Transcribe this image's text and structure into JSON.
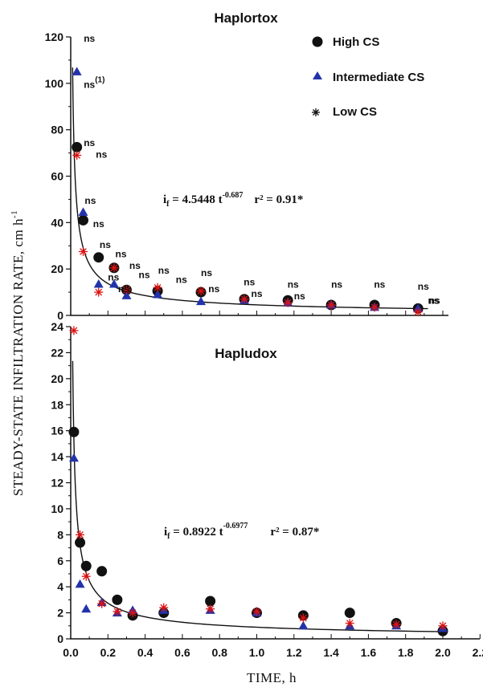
{
  "colors": {
    "high": "#111111",
    "intermediate": "#2233aa",
    "low": "#dd1111",
    "fit": "#111111"
  },
  "figure": {
    "ylabel": "STEADY-STATE INFILTRATION RATE, cm h",
    "ylabel_sup": "-1",
    "xlabel": "TIME, h"
  },
  "legend": {
    "high": "High CS",
    "intermediate": "Intermediate CS",
    "low": "Low CS"
  },
  "chart_data": [
    {
      "type": "scatter",
      "title": "Haplortox",
      "xlim": [
        0,
        2.2
      ],
      "ylim": [
        0,
        120
      ],
      "y_ticks": [
        0,
        20,
        40,
        60,
        80,
        100,
        120
      ],
      "x_tick_labels_shown": false,
      "equation": {
        "lhs": "i",
        "sub": "f",
        "coef": " = 4.5448 t",
        "exp": "-0.687",
        "r2": "r² = 0.91*"
      },
      "fit": {
        "a": 4.5448,
        "b": -0.687
      },
      "series": [
        {
          "name": "High CS",
          "marker": "circle",
          "x": [
            0.033,
            0.067,
            0.15,
            0.233,
            0.3,
            0.467,
            0.7,
            0.933,
            1.167,
            1.4,
            1.633,
            1.867
          ],
          "y": [
            72.5,
            41,
            25,
            20.5,
            11,
            10.5,
            10,
            7,
            6.5,
            4.5,
            4.5,
            3
          ]
        },
        {
          "name": "Intermediate CS",
          "marker": "triangle",
          "x": [
            0.033,
            0.067,
            0.15,
            0.233,
            0.3,
            0.467,
            0.7,
            0.933,
            1.167,
            1.4,
            1.633,
            1.867
          ],
          "y": [
            105,
            44.5,
            13.5,
            13.5,
            8.5,
            9,
            6,
            6.5,
            5.5,
            4.5,
            3.5,
            3
          ]
        },
        {
          "name": "Low CS",
          "marker": "star",
          "x": [
            0.033,
            0.067,
            0.15,
            0.233,
            0.3,
            0.467,
            0.7,
            0.933,
            1.167,
            1.4,
            1.633,
            1.867
          ],
          "y": [
            69,
            27.5,
            10,
            20.5,
            11,
            12,
            10.5,
            7,
            5.5,
            4.5,
            3.5,
            1.5
          ]
        }
      ],
      "annotations": [
        {
          "text": "ns",
          "x": 0.07,
          "y": 118
        },
        {
          "text": "ns",
          "sup": "(1)",
          "x": 0.07,
          "y": 98
        },
        {
          "text": "ns",
          "x": 0.07,
          "y": 73
        },
        {
          "text": "ns",
          "x": 0.135,
          "y": 68
        },
        {
          "text": "ns",
          "x": 0.075,
          "y": 48
        },
        {
          "text": "ns",
          "x": 0.12,
          "y": 38
        },
        {
          "text": "ns",
          "x": 0.155,
          "y": 29
        },
        {
          "text": "ns",
          "x": 0.24,
          "y": 25
        },
        {
          "text": "ns",
          "x": 0.2,
          "y": 15
        },
        {
          "text": "ns",
          "x": 0.315,
          "y": 20
        },
        {
          "text": "ns",
          "x": 0.255,
          "y": 10
        },
        {
          "text": "ns",
          "x": 0.365,
          "y": 16
        },
        {
          "text": "ns",
          "x": 0.47,
          "y": 18
        },
        {
          "text": "ns",
          "x": 0.565,
          "y": 14
        },
        {
          "text": "ns",
          "x": 0.7,
          "y": 17
        },
        {
          "text": "ns",
          "x": 0.74,
          "y": 10
        },
        {
          "text": "ns",
          "x": 0.93,
          "y": 13
        },
        {
          "text": "ns",
          "x": 0.97,
          "y": 8
        },
        {
          "text": "ns",
          "x": 1.165,
          "y": 12
        },
        {
          "text": "ns",
          "x": 1.2,
          "y": 7
        },
        {
          "text": "ns",
          "x": 1.4,
          "y": 12
        },
        {
          "text": "ns",
          "x": 1.63,
          "y": 12
        },
        {
          "text": "ns",
          "x": 1.865,
          "y": 11
        },
        {
          "text": "ns",
          "x": 1.92,
          "y": 5
        },
        {
          "text": "ns",
          "x": 1.925,
          "y": 5
        }
      ]
    },
    {
      "type": "scatter",
      "title": "Hapludox",
      "xlim": [
        0,
        2.2
      ],
      "ylim": [
        0,
        24
      ],
      "y_ticks": [
        0,
        2,
        4,
        6,
        8,
        10,
        12,
        14,
        16,
        18,
        20,
        22,
        24
      ],
      "x_ticks": [
        0.0,
        0.2,
        0.4,
        0.6,
        0.8,
        1.0,
        1.2,
        1.4,
        1.6,
        1.8,
        2.0,
        2.2
      ],
      "x_tick_labels": [
        "0.0",
        "0.2",
        "0.4",
        "0.6",
        "0.8",
        "1.0",
        "1.2",
        "1.4",
        "1.6",
        "1.8",
        "2.0",
        "2.2"
      ],
      "equation": {
        "lhs": "i",
        "sub": "f",
        "coef": " = 0.8922 t",
        "exp": "-0.6977",
        "r2": "r² = 0.87*"
      },
      "fit": {
        "a": 0.8922,
        "b": -0.6977
      },
      "series": [
        {
          "name": "High CS",
          "marker": "circle",
          "x": [
            0.017,
            0.05,
            0.083,
            0.167,
            0.25,
            0.333,
            0.5,
            0.75,
            1.0,
            1.25,
            1.5,
            1.75,
            2.0
          ],
          "y": [
            15.9,
            7.4,
            5.6,
            5.2,
            3.0,
            1.8,
            2.0,
            2.9,
            2.0,
            1.8,
            2.0,
            1.2,
            0.6
          ]
        },
        {
          "name": "Intermediate CS",
          "marker": "triangle",
          "x": [
            0.017,
            0.05,
            0.083,
            0.167,
            0.25,
            0.333,
            0.5,
            0.75,
            1.0,
            1.25,
            1.5,
            1.75,
            2.0
          ],
          "y": [
            13.9,
            4.2,
            2.3,
            2.8,
            2.0,
            2.2,
            2.2,
            2.2,
            2.0,
            1.0,
            1.0,
            1.0,
            0.8
          ]
        },
        {
          "name": "Low CS",
          "marker": "star",
          "x": [
            0.017,
            0.05,
            0.083,
            0.167,
            0.25,
            0.333,
            0.5,
            0.75,
            1.0,
            1.25,
            1.5,
            1.75,
            2.0
          ],
          "y": [
            23.7,
            8.0,
            4.8,
            2.7,
            2.1,
            2.0,
            2.4,
            2.3,
            2.1,
            1.6,
            1.2,
            1.1,
            1.0
          ]
        }
      ]
    }
  ]
}
